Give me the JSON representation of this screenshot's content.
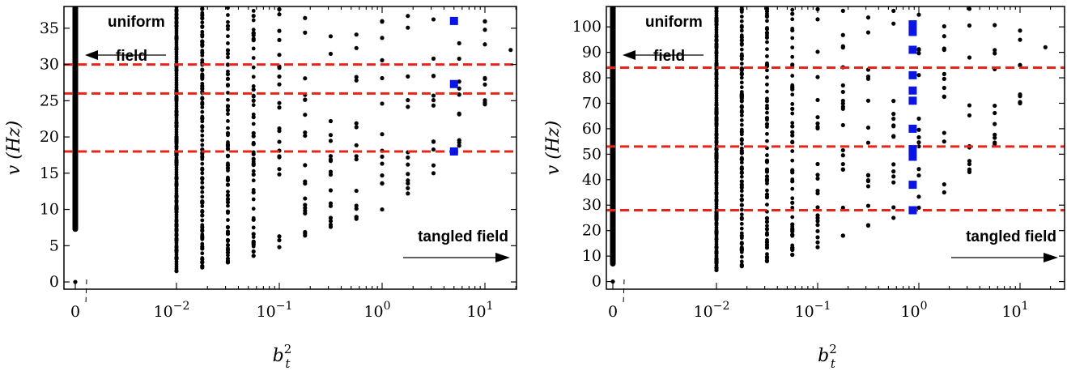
{
  "chart_data": [
    {
      "type": "scatter",
      "xlabel": "b",
      "xlabel_sub": "t",
      "xlabel_sup": "2",
      "ylabel": "v (Hz)",
      "ylim": [
        -1,
        38
      ],
      "yticks": [
        0,
        5,
        10,
        15,
        20,
        25,
        30,
        35
      ],
      "x_scale": "log (broken axis, with b_t^2 = 0 placed separately)",
      "xlim_log10": [
        -2.55,
        1.33
      ],
      "xticks": [
        {
          "label": "0",
          "value": 0
        },
        {
          "base": "10",
          "exp": "−2",
          "value": 0.01
        },
        {
          "base": "10",
          "exp": "−1",
          "value": 0.1
        },
        {
          "base": "10",
          "exp": "0",
          "value": 1
        },
        {
          "base": "10",
          "exp": "1",
          "value": 10
        }
      ],
      "zero_column": {
        "x": 0,
        "y_min": 7.3,
        "y_max": 38,
        "isolated_point": 0
      },
      "columns": [
        {
          "x": 0.01,
          "y_min": 1.5,
          "y_max": 38
        },
        {
          "x": 0.0178,
          "y_min": 2.0,
          "y_max": 38
        },
        {
          "x": 0.0316,
          "y_min": 2.7,
          "y_max": 38
        },
        {
          "x": 0.0562,
          "y_min": 3.6,
          "y_max": 38
        },
        {
          "x": 0.1,
          "y_min": 4.8,
          "y_max": 38
        },
        {
          "x": 0.178,
          "y_min": 6.4,
          "y_max": 38
        },
        {
          "x": 0.316,
          "y_min": 7.6,
          "y_max": 38
        },
        {
          "x": 0.562,
          "y_min": 8.7,
          "y_max": 38
        },
        {
          "x": 1.0,
          "y_min": 10.0,
          "y_max": 38
        },
        {
          "x": 1.78,
          "y_min": 12.2,
          "y_max": 38
        },
        {
          "x": 3.16,
          "y_min": 15.0,
          "y_max": 37.5
        },
        {
          "x": 5.62,
          "y_min": 18.8,
          "y_max": 37.8
        },
        {
          "x": 10.0,
          "y_min": 24.5,
          "y_max": 37.5
        },
        {
          "x": 17.8,
          "y_min": 32.0,
          "y_max": 32.0
        }
      ],
      "highlighted_points": [
        {
          "x": 5.0,
          "y": 36
        },
        {
          "x": 5.0,
          "y": 27.3
        },
        {
          "x": 5.0,
          "y": 18
        }
      ],
      "reference_lines": [
        30,
        26,
        18
      ],
      "annotations": [
        {
          "text": "uniform",
          "position": "top-left"
        },
        {
          "text": "field",
          "position": "top-left"
        },
        {
          "text": "tangled field",
          "position": "bottom-right"
        }
      ],
      "colors": {
        "points": "#000000",
        "highlight": "#0a14e6",
        "lines": "#e8241a"
      }
    },
    {
      "type": "scatter",
      "xlabel": "b",
      "xlabel_sub": "t",
      "xlabel_sup": "2",
      "ylabel": "v (Hz)",
      "ylim": [
        -3,
        108
      ],
      "yticks": [
        0,
        10,
        20,
        30,
        40,
        50,
        60,
        70,
        80,
        90,
        100
      ],
      "x_scale": "log (broken axis, with b_t^2 = 0 placed separately)",
      "xlim_log10": [
        -2.55,
        1.33
      ],
      "xticks": [
        {
          "label": "0",
          "value": 0
        },
        {
          "base": "10",
          "exp": "−2",
          "value": 0.01
        },
        {
          "base": "10",
          "exp": "−1",
          "value": 0.1
        },
        {
          "base": "10",
          "exp": "0",
          "value": 1
        },
        {
          "base": "10",
          "exp": "1",
          "value": 10
        }
      ],
      "zero_column": {
        "x": 0,
        "y_min": 7,
        "y_max": 108,
        "isolated_point": 0
      },
      "columns": [
        {
          "x": 0.01,
          "y_min": 4.5,
          "y_max": 108
        },
        {
          "x": 0.0178,
          "y_min": 6,
          "y_max": 108
        },
        {
          "x": 0.0316,
          "y_min": 8,
          "y_max": 108
        },
        {
          "x": 0.0562,
          "y_min": 10.5,
          "y_max": 108
        },
        {
          "x": 0.1,
          "y_min": 13.5,
          "y_max": 108
        },
        {
          "x": 0.178,
          "y_min": 18,
          "y_max": 108
        },
        {
          "x": 0.316,
          "y_min": 22,
          "y_max": 108
        },
        {
          "x": 0.562,
          "y_min": 25,
          "y_max": 108
        },
        {
          "x": 1.0,
          "y_min": 29,
          "y_max": 108
        },
        {
          "x": 1.78,
          "y_min": 35,
          "y_max": 108
        },
        {
          "x": 3.16,
          "y_min": 43,
          "y_max": 108
        },
        {
          "x": 5.62,
          "y_min": 54,
          "y_max": 108
        },
        {
          "x": 10.0,
          "y_min": 70,
          "y_max": 108
        },
        {
          "x": 17.8,
          "y_min": 92,
          "y_max": 92
        }
      ],
      "highlighted_points": [
        {
          "x": 0.87,
          "y": 101
        },
        {
          "x": 0.87,
          "y": 98
        },
        {
          "x": 0.87,
          "y": 91
        },
        {
          "x": 0.87,
          "y": 81
        },
        {
          "x": 0.87,
          "y": 75
        },
        {
          "x": 0.87,
          "y": 71
        },
        {
          "x": 0.87,
          "y": 60
        },
        {
          "x": 0.87,
          "y": 52
        },
        {
          "x": 0.87,
          "y": 49
        },
        {
          "x": 0.87,
          "y": 38
        },
        {
          "x": 0.87,
          "y": 28
        }
      ],
      "reference_lines": [
        84,
        53,
        28
      ],
      "annotations": [
        {
          "text": "uniform",
          "position": "top-left"
        },
        {
          "text": "field",
          "position": "top-left"
        },
        {
          "text": "tangled field",
          "position": "bottom-right"
        }
      ],
      "colors": {
        "points": "#000000",
        "highlight": "#0a14e6",
        "lines": "#e8241a"
      }
    }
  ]
}
